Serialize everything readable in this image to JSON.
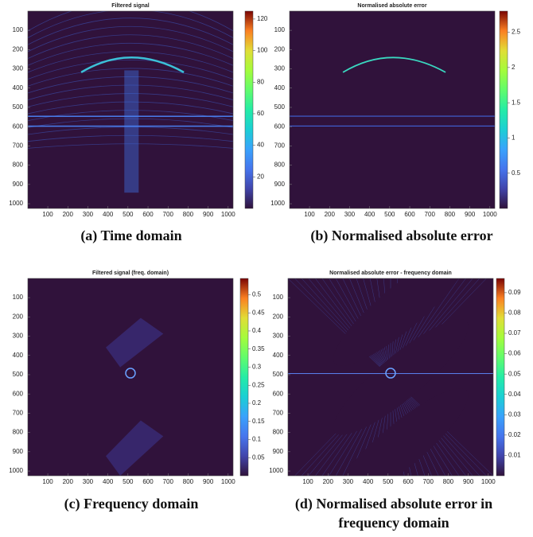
{
  "chart_data": [
    {
      "type": "heatmap",
      "title": "Filtered signal",
      "caption": "(a) Time domain",
      "xlim": [
        0.5,
        1024.5
      ],
      "ylim": [
        0.5,
        1024.5
      ],
      "xticks": [
        100,
        200,
        300,
        400,
        500,
        600,
        700,
        800,
        900,
        1000
      ],
      "yticks": [
        100,
        200,
        300,
        400,
        500,
        600,
        700,
        800,
        900,
        1000
      ],
      "clim": [
        0,
        125
      ],
      "cticks": [
        20,
        40,
        60,
        80,
        100,
        120
      ]
    },
    {
      "type": "heatmap",
      "title": "Normalised absolute error",
      "caption": "(b) Normalised absolute error",
      "xlim": [
        0.5,
        1024.5
      ],
      "ylim": [
        0.5,
        1024.5
      ],
      "xticks": [
        100,
        200,
        300,
        400,
        500,
        600,
        700,
        800,
        900,
        1000
      ],
      "yticks": [
        100,
        200,
        300,
        400,
        500,
        600,
        700,
        800,
        900,
        1000
      ],
      "clim": [
        0,
        2.8
      ],
      "cticks": [
        0.5,
        1,
        1.5,
        2,
        2.5
      ]
    },
    {
      "type": "heatmap",
      "title": "Filtered signal (freq. domain)",
      "caption": "(c) Frequency domain",
      "xlim": [
        0.5,
        1024.5
      ],
      "ylim": [
        0.5,
        1024.5
      ],
      "xticks": [
        100,
        200,
        300,
        400,
        500,
        600,
        700,
        800,
        900,
        1000
      ],
      "yticks": [
        100,
        200,
        300,
        400,
        500,
        600,
        700,
        800,
        900,
        1000
      ],
      "clim": [
        0,
        0.545
      ],
      "cticks": [
        0.05,
        0.1,
        0.15,
        0.2,
        0.25,
        0.3,
        0.35,
        0.4,
        0.45,
        0.5
      ]
    },
    {
      "type": "heatmap",
      "title": "Normalised absolute error - frequency domain",
      "caption": "(d) Normalised absolute error in frequency domain",
      "xlim": [
        0.5,
        1024.5
      ],
      "ylim": [
        0.5,
        1024.5
      ],
      "xticks": [
        100,
        200,
        300,
        400,
        500,
        600,
        700,
        800,
        900,
        1000
      ],
      "yticks": [
        100,
        200,
        300,
        400,
        500,
        600,
        700,
        800,
        900,
        1000
      ],
      "clim": [
        0,
        0.097
      ],
      "cticks": [
        0.01,
        0.02,
        0.03,
        0.04,
        0.05,
        0.06,
        0.07,
        0.08,
        0.09
      ]
    }
  ]
}
